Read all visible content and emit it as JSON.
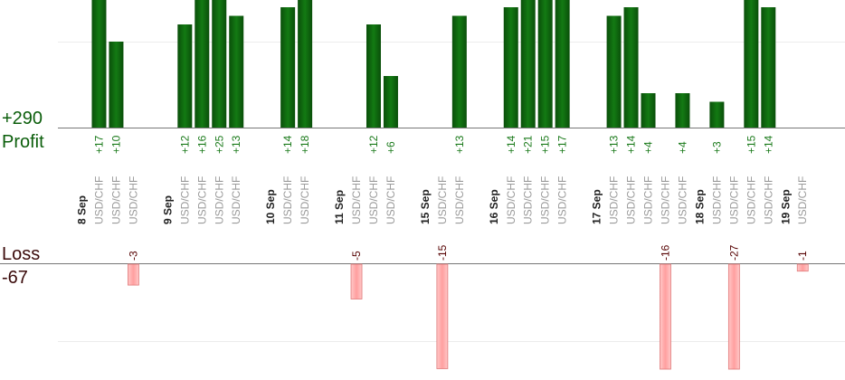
{
  "summary": {
    "profit_total": "+290",
    "profit_label": "Profit",
    "loss_label": "Loss",
    "loss_total": "-67"
  },
  "colors": {
    "profit": "#0b5e0b",
    "loss": "#ffb3b3",
    "loss_stroke": "#e07a7a",
    "profit_text": "#1a7a1a",
    "loss_text": "#550000"
  },
  "chart_data": {
    "type": "bar",
    "title": "",
    "xlabel": "",
    "ylabel": "",
    "pair_label": "USD/CHF",
    "dates": [
      {
        "label": "8 Sep",
        "slot": 0
      },
      {
        "label": "9 Sep",
        "slot": 5
      },
      {
        "label": "10 Sep",
        "slot": 11
      },
      {
        "label": "11 Sep",
        "slot": 15
      },
      {
        "label": "15 Sep",
        "slot": 20
      },
      {
        "label": "16 Sep",
        "slot": 24
      },
      {
        "label": "17 Sep",
        "slot": 30
      },
      {
        "label": "18 Sep",
        "slot": 36
      },
      {
        "label": "19 Sep",
        "slot": 41
      }
    ],
    "trades": [
      {
        "slot": 1,
        "pair": "USD/CHF",
        "value": 17
      },
      {
        "slot": 2,
        "pair": "USD/CHF",
        "value": 10
      },
      {
        "slot": 3,
        "pair": "USD/CHF",
        "value": -3
      },
      {
        "slot": 6,
        "pair": "USD/CHF",
        "value": 12
      },
      {
        "slot": 7,
        "pair": "USD/CHF",
        "value": 16
      },
      {
        "slot": 8,
        "pair": "USD/CHF",
        "value": 25
      },
      {
        "slot": 9,
        "pair": "USD/CHF",
        "value": 13
      },
      {
        "slot": 12,
        "pair": "USD/CHF",
        "value": 14
      },
      {
        "slot": 13,
        "pair": "USD/CHF",
        "value": 18
      },
      {
        "slot": 16,
        "pair": "USD/CHF",
        "value": -5
      },
      {
        "slot": 17,
        "pair": "USD/CHF",
        "value": 12
      },
      {
        "slot": 18,
        "pair": "USD/CHF",
        "value": 6
      },
      {
        "slot": 21,
        "pair": "USD/CHF",
        "value": -15
      },
      {
        "slot": 22,
        "pair": "USD/CHF",
        "value": 13
      },
      {
        "slot": 25,
        "pair": "USD/CHF",
        "value": 14
      },
      {
        "slot": 26,
        "pair": "USD/CHF",
        "value": 21
      },
      {
        "slot": 27,
        "pair": "USD/CHF",
        "value": 15
      },
      {
        "slot": 28,
        "pair": "USD/CHF",
        "value": 17
      },
      {
        "slot": 31,
        "pair": "USD/CHF",
        "value": 13
      },
      {
        "slot": 32,
        "pair": "USD/CHF",
        "value": 14
      },
      {
        "slot": 33,
        "pair": "USD/CHF",
        "value": 4
      },
      {
        "slot": 34,
        "pair": "USD/CHF",
        "value": -16
      },
      {
        "slot": 35,
        "pair": "USD/CHF",
        "value": 4
      },
      {
        "slot": 37,
        "pair": "USD/CHF",
        "value": 3
      },
      {
        "slot": 38,
        "pair": "USD/CHF",
        "value": -27
      },
      {
        "slot": 39,
        "pair": "USD/CHF",
        "value": 15
      },
      {
        "slot": 40,
        "pair": "USD/CHF",
        "value": 14
      },
      {
        "slot": 42,
        "pair": "USD/CHF",
        "value": -1
      }
    ]
  }
}
